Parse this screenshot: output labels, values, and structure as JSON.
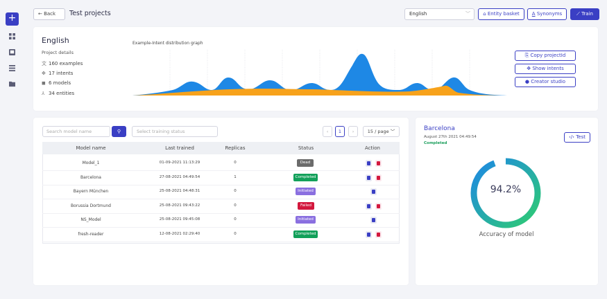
{
  "header": {
    "back_label": "Back",
    "title": "Test projects",
    "language": "English",
    "entity_basket": "Entity basket",
    "synonyms": "Synonyms",
    "train": "Train"
  },
  "project": {
    "language": "English",
    "details_label": "Project details",
    "examples": "160 examples",
    "intents": "17 intents",
    "models": "6 models",
    "entities": "34 entities",
    "graph_title": "Example-Intent distribution graph",
    "graph_colors": [
      "#1e88e5",
      "#f7a21b"
    ],
    "copy_id": "Copy projectId",
    "show_intents": "Show intents",
    "creator_studio": "Creator studio"
  },
  "models": {
    "search_placeholder": "Search model name",
    "status_placeholder": "Select training status",
    "page": "1",
    "per_page": "15 / page",
    "columns": [
      "Model name",
      "Last trained",
      "Replicas",
      "Status",
      "Action"
    ],
    "rows": [
      {
        "name": "Model_1",
        "trained": "01-09-2021 11:13:29",
        "replicas": "0",
        "status": "Dead",
        "color": "#6b6b6b",
        "delete": true
      },
      {
        "name": "Barcelona",
        "trained": "27-08-2021 04:49:54",
        "replicas": "1",
        "status": "Completed",
        "color": "#12a05a",
        "delete": true
      },
      {
        "name": "Bayern München",
        "trained": "25-08-2021 04:48:31",
        "replicas": "0",
        "status": "Initiated",
        "color": "#8a6fe0",
        "delete": false
      },
      {
        "name": "Borussia Dortmund",
        "trained": "25-08-2021 09:43:22",
        "replicas": "0",
        "status": "Failed",
        "color": "#d3183d",
        "delete": true
      },
      {
        "name": "NS_Model",
        "trained": "25-08-2021 09:45:08",
        "replicas": "0",
        "status": "Initiated",
        "color": "#8a6fe0",
        "delete": false
      },
      {
        "name": "fresh-reader",
        "trained": "12-08-2021 02:29:40",
        "replicas": "0",
        "status": "Completed",
        "color": "#12a05a",
        "delete": true
      }
    ]
  },
  "accuracy": {
    "model_name": "Barcelona",
    "date": "August 27th 2021 04:49:54",
    "status": "Completed",
    "test_label": "Test",
    "value": "94.2%",
    "fraction": 0.942,
    "label": "Accuracy of model"
  }
}
